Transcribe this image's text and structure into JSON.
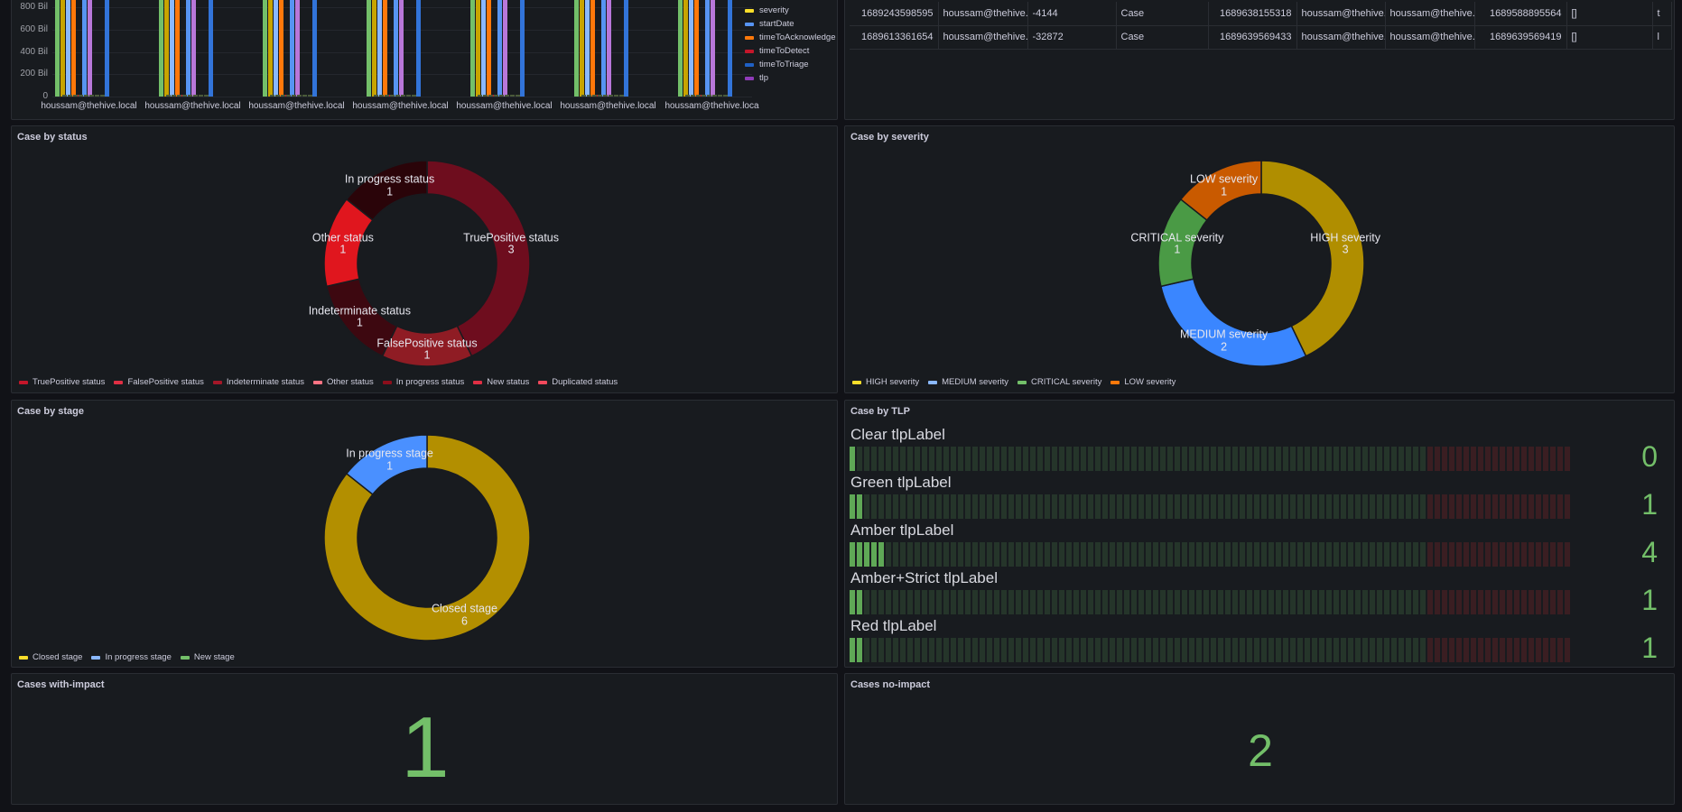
{
  "bar_panel": {
    "y_ticks": [
      "800 Bil",
      "600 Bil",
      "400 Bil",
      "200 Bil",
      "0"
    ],
    "x_labels": [
      "houssam@thehive.local",
      "houssam@thehive.local",
      "houssam@thehive.local",
      "houssam@thehive.local",
      "houssam@thehive.local",
      "houssam@thehive.local",
      "houssam@thehive.loca"
    ],
    "legend": [
      {
        "label": "severity",
        "color": "#fade2a"
      },
      {
        "label": "startDate",
        "color": "#5794f2"
      },
      {
        "label": "timeToAcknowledge",
        "color": "#ff780a"
      },
      {
        "label": "timeToDetect",
        "color": "#c4162a"
      },
      {
        "label": "timeToTriage",
        "color": "#1f60c4"
      },
      {
        "label": "tlp",
        "color": "#8f3bb8"
      }
    ],
    "bar_colors": [
      "#73bf69",
      "#c8a400",
      "#8ab8ff",
      "#ff780a",
      "#c4162a",
      "#5794f2",
      "#b877d9",
      "#3274d9"
    ],
    "ymax_bil": 900
  },
  "table": {
    "rows": [
      [
        "1689243598595",
        "houssam@thehive...",
        "-4144",
        "Case",
        "1689638155318",
        "houssam@thehive...",
        "houssam@thehive...",
        "1689588895564",
        "[]",
        "t"
      ],
      [
        "1689613361654",
        "houssam@thehive...",
        "-32872",
        "Case",
        "1689639569433",
        "houssam@thehive...",
        "houssam@thehive...",
        "1689639569419",
        "[]",
        "l"
      ]
    ]
  },
  "chart_data": [
    {
      "type": "pie",
      "title": "Case by status",
      "categories": [
        "TruePositive status",
        "FalsePositive status",
        "Indeterminate status",
        "Other status",
        "In progress status",
        "New status",
        "Duplicated status"
      ],
      "values": [
        3,
        1,
        1,
        1,
        1,
        0,
        0
      ],
      "colors": [
        "#6e0d1e",
        "#8f1c24",
        "#3d0810",
        "#e0161e",
        "#2a0409",
        "#c4162a",
        "#ff4d5b"
      ],
      "legend_colors": [
        "#c4162a",
        "#e02f44",
        "#a51728",
        "#ff7383",
        "#8c0e1b",
        "#e02f44",
        "#f2495c"
      ]
    },
    {
      "type": "pie",
      "title": "Case by severity",
      "categories": [
        "HIGH severity",
        "MEDIUM severity",
        "CRITICAL severity",
        "LOW severity"
      ],
      "values": [
        3,
        2,
        1,
        1
      ],
      "colors": [
        "#b08e00",
        "#3a86ff",
        "#4a9a45",
        "#c95a00"
      ],
      "legend_colors": [
        "#fade2a",
        "#8ab8ff",
        "#73bf69",
        "#ff780a"
      ]
    },
    {
      "type": "pie",
      "title": "Case by stage",
      "categories": [
        "Closed stage",
        "In progress stage",
        "New stage"
      ],
      "values": [
        6,
        1,
        0
      ],
      "colors": [
        "#b38f00",
        "#4a90ff",
        "#73bf69"
      ],
      "legend_colors": [
        "#fade2a",
        "#8ab8ff",
        "#73bf69"
      ]
    },
    {
      "type": "bar",
      "title": "Case by TLP",
      "categories": [
        "Clear tlpLabel",
        "Green tlpLabel",
        "Amber tlpLabel",
        "Amber+Strict tlpLabel",
        "Red tlpLabel"
      ],
      "values": [
        0,
        1,
        4,
        1,
        1
      ],
      "max": 100,
      "threshold": 80
    }
  ],
  "stats": {
    "with_impact_title": "Cases with-impact",
    "with_impact": "1",
    "no_impact_title": "Cases no-impact",
    "no_impact": "2"
  }
}
